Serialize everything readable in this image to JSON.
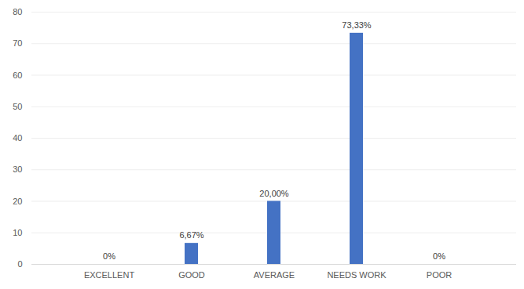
{
  "chart_data": {
    "type": "bar",
    "categories": [
      "EXCELLENT",
      "GOOD",
      "AVERAGE",
      "NEEDS WORK",
      "POOR"
    ],
    "values": [
      0,
      6.67,
      20,
      73.33,
      0
    ],
    "value_labels": [
      "0%",
      "6,67%",
      "20,00%",
      "73,33%",
      "0%"
    ],
    "color": "#4472c4",
    "ylim": [
      0,
      80
    ],
    "yticks": [
      0,
      10,
      20,
      30,
      40,
      50,
      60,
      70,
      80
    ],
    "grid": true,
    "data_labels": true
  }
}
